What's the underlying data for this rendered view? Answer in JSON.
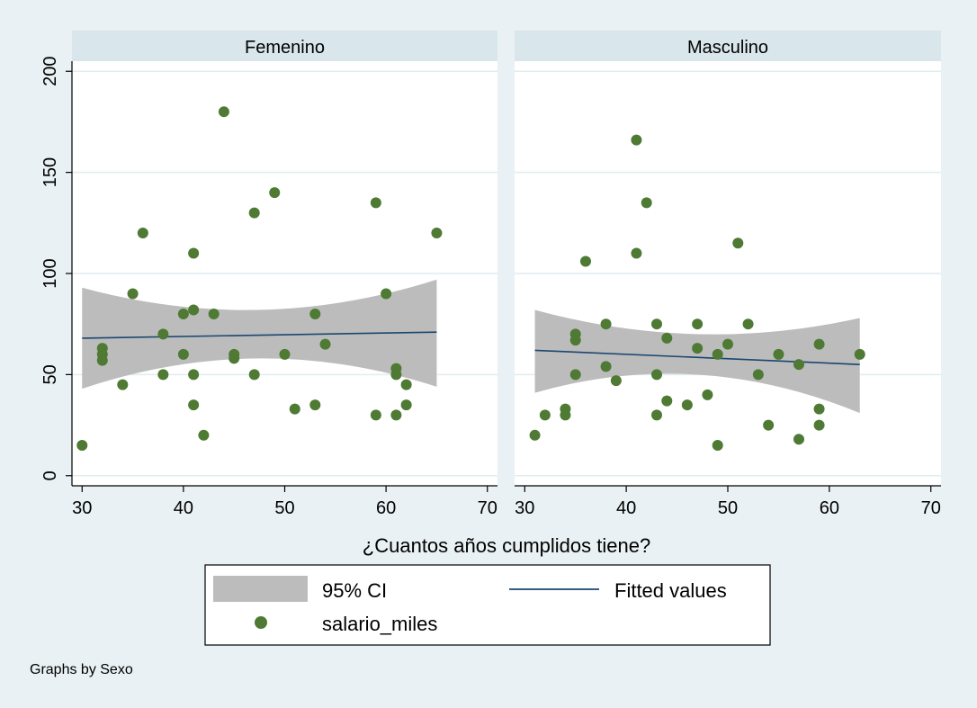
{
  "chart_data": {
    "type": "scatter",
    "x_label": "¿Cuantos años cumplidos tiene?",
    "xlim": [
      29,
      71
    ],
    "ylim": [
      -5,
      205
    ],
    "x_ticks": [
      "30",
      "40",
      "50",
      "60",
      "70"
    ],
    "y_ticks": [
      "0",
      "50",
      "100",
      "150",
      "200"
    ],
    "note": "Graphs by Sexo",
    "grid": true,
    "legend": {
      "position": "bottom",
      "ci_label": "95% CI",
      "fit_label": "Fitted values",
      "scatter_label": "salario_miles"
    },
    "colors": {
      "background": "#e9f1f4",
      "panel": "#ffffff",
      "header": "#d9e6eb",
      "ci": "#bcbcbc",
      "fit": "#1a476f",
      "points": "#4e7a34",
      "grid": "#e0ecf0"
    },
    "panels": [
      {
        "title": "Femenino",
        "points": [
          [
            30,
            15
          ],
          [
            32,
            63
          ],
          [
            32,
            60
          ],
          [
            32,
            57
          ],
          [
            34,
            45
          ],
          [
            35,
            90
          ],
          [
            36,
            120
          ],
          [
            38,
            70
          ],
          [
            38,
            50
          ],
          [
            40,
            80
          ],
          [
            40,
            60
          ],
          [
            41,
            110
          ],
          [
            41,
            82
          ],
          [
            41,
            50
          ],
          [
            41,
            35
          ],
          [
            42,
            20
          ],
          [
            43,
            80
          ],
          [
            44,
            180
          ],
          [
            45,
            60
          ],
          [
            45,
            58
          ],
          [
            47,
            130
          ],
          [
            47,
            50
          ],
          [
            49,
            140
          ],
          [
            50,
            60
          ],
          [
            51,
            33
          ],
          [
            53,
            80
          ],
          [
            53,
            35
          ],
          [
            54,
            65
          ],
          [
            59,
            135
          ],
          [
            59,
            30
          ],
          [
            60,
            90
          ],
          [
            61,
            53
          ],
          [
            61,
            50
          ],
          [
            61,
            30
          ],
          [
            62,
            45
          ],
          [
            62,
            35
          ],
          [
            65,
            120
          ]
        ],
        "fit": {
          "x": [
            30,
            65
          ],
          "y": [
            68,
            71
          ]
        },
        "ci": {
          "x": [
            30,
            47.5,
            65
          ],
          "upper": [
            93,
            82,
            97
          ],
          "lower": [
            43,
            58,
            44
          ]
        }
      },
      {
        "title": "Masculino",
        "points": [
          [
            31,
            20
          ],
          [
            32,
            30
          ],
          [
            34,
            33
          ],
          [
            34,
            30
          ],
          [
            35,
            70
          ],
          [
            35,
            67
          ],
          [
            35,
            50
          ],
          [
            36,
            106
          ],
          [
            38,
            75
          ],
          [
            38,
            54
          ],
          [
            39,
            47
          ],
          [
            41,
            166
          ],
          [
            41,
            110
          ],
          [
            42,
            135
          ],
          [
            43,
            75
          ],
          [
            43,
            50
          ],
          [
            43,
            30
          ],
          [
            44,
            68
          ],
          [
            44,
            37
          ],
          [
            46,
            35
          ],
          [
            47,
            75
          ],
          [
            47,
            63
          ],
          [
            48,
            40
          ],
          [
            49,
            60
          ],
          [
            49,
            15
          ],
          [
            50,
            65
          ],
          [
            51,
            115
          ],
          [
            52,
            75
          ],
          [
            53,
            50
          ],
          [
            54,
            25
          ],
          [
            55,
            60
          ],
          [
            57,
            55
          ],
          [
            57,
            18
          ],
          [
            59,
            65
          ],
          [
            59,
            33
          ],
          [
            59,
            25
          ],
          [
            63,
            60
          ]
        ],
        "fit": {
          "x": [
            31,
            63
          ],
          "y": [
            62,
            55
          ]
        },
        "ci": {
          "x": [
            31,
            47,
            63
          ],
          "upper": [
            82,
            70,
            78
          ],
          "lower": [
            41,
            50,
            31
          ]
        }
      }
    ]
  }
}
